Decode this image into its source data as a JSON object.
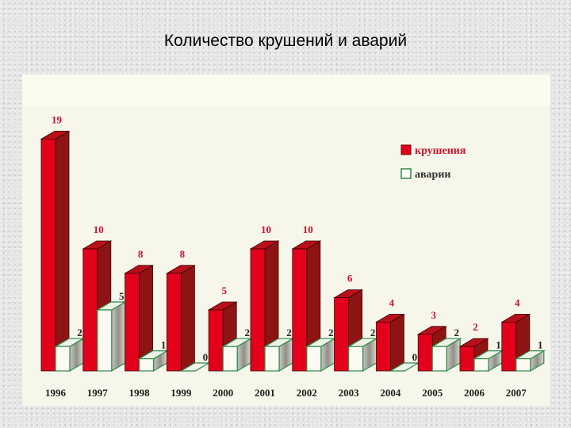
{
  "slide": {
    "title": "Количество крушений и аварий"
  },
  "legend": {
    "items": [
      {
        "label": "крушения",
        "color": "#e0001b"
      },
      {
        "label": "аварии",
        "color": "#ffffff",
        "border": "#2e8b4a"
      }
    ]
  },
  "colors": {
    "red_front": "#e3001b",
    "red_side": "#8e1414",
    "red_top": "#b8101a",
    "green_edge": "#2e8b4a",
    "white_front": "#fbfbf3",
    "panel_bg": "#f6f6ea"
  },
  "chart_data": {
    "type": "bar",
    "title": "Количество крушений и аварий",
    "xlabel": "",
    "ylabel": "",
    "categories": [
      "1996",
      "1997",
      "1998",
      "1999",
      "2000",
      "2001",
      "2002",
      "2003",
      "2004",
      "2005",
      "2006",
      "2007"
    ],
    "series": [
      {
        "name": "крушения",
        "values": [
          19,
          10,
          8,
          8,
          5,
          10,
          10,
          6,
          4,
          3,
          2,
          4
        ]
      },
      {
        "name": "аварии",
        "values": [
          2,
          5,
          1,
          0,
          2,
          2,
          2,
          2,
          0,
          2,
          1,
          1
        ]
      }
    ],
    "style": "3d-clustered-bar",
    "grid": false,
    "legend_position": "top-right",
    "data_labels": true
  }
}
